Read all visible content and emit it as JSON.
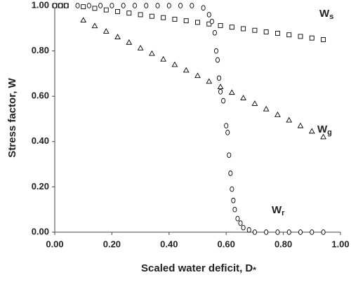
{
  "chart_data": {
    "type": "scatter",
    "x_label": {
      "text": "Scaled water deficit, D",
      "sub": "*"
    },
    "y_label": "Stress factor, W",
    "xlim": [
      0,
      1
    ],
    "ylim": [
      0,
      1
    ],
    "xticks": [
      {
        "value": 0,
        "label": "0.00"
      },
      {
        "value": 0.2,
        "label": "0.20"
      },
      {
        "value": 0.4,
        "label": "0.40"
      },
      {
        "value": 0.6,
        "label": "0.60"
      },
      {
        "value": 0.8,
        "label": "0.80"
      },
      {
        "value": 1,
        "label": "1.00"
      }
    ],
    "yticks": [
      {
        "value": 0,
        "label": "0.00"
      },
      {
        "value": 0.2,
        "label": "0.20"
      },
      {
        "value": 0.4,
        "label": "0.40"
      },
      {
        "value": 0.6,
        "label": "0.60"
      },
      {
        "value": 0.8,
        "label": "0.80"
      },
      {
        "value": 1,
        "label": "1.00"
      }
    ],
    "grid": false,
    "series": [
      {
        "marker": "square",
        "color": "#000000",
        "x": [
          0,
          0.02,
          0.04,
          0.1,
          0.14,
          0.18,
          0.22,
          0.26,
          0.3,
          0.34,
          0.38,
          0.42,
          0.46,
          0.5,
          0.54,
          0.58,
          0.62,
          0.66,
          0.7,
          0.74,
          0.78,
          0.82,
          0.86,
          0.9,
          0.94
        ],
        "values": [
          1,
          1,
          1,
          0.995,
          0.988,
          0.981,
          0.974,
          0.967,
          0.96,
          0.953,
          0.947,
          0.94,
          0.933,
          0.926,
          0.919,
          0.912,
          0.905,
          0.898,
          0.891,
          0.884,
          0.878,
          0.871,
          0.864,
          0.857,
          0.85
        ]
      },
      {
        "marker": "triangle",
        "color": "#000000",
        "x": [
          0.1,
          0.14,
          0.18,
          0.22,
          0.26,
          0.3,
          0.34,
          0.38,
          0.42,
          0.46,
          0.5,
          0.54,
          0.58,
          0.62,
          0.66,
          0.7,
          0.74,
          0.78,
          0.82,
          0.86,
          0.9,
          0.94
        ],
        "values": [
          0.935,
          0.91,
          0.886,
          0.861,
          0.837,
          0.812,
          0.788,
          0.763,
          0.739,
          0.714,
          0.69,
          0.665,
          0.641,
          0.616,
          0.592,
          0.567,
          0.543,
          0.518,
          0.494,
          0.469,
          0.445,
          0.42
        ]
      },
      {
        "marker": "circle",
        "color": "#000000",
        "x": [
          0,
          0.02,
          0.04,
          0.08,
          0.12,
          0.16,
          0.2,
          0.24,
          0.28,
          0.32,
          0.36,
          0.4,
          0.44,
          0.48,
          0.52,
          0.54,
          0.55,
          0.56,
          0.565,
          0.57,
          0.575,
          0.58,
          0.59,
          0.6,
          0.605,
          0.61,
          0.615,
          0.62,
          0.625,
          0.63,
          0.64,
          0.65,
          0.66,
          0.68,
          0.7,
          0.74,
          0.78,
          0.82,
          0.86,
          0.9,
          0.94
        ],
        "values": [
          1,
          1,
          1,
          1,
          1,
          1,
          1,
          1,
          1,
          1,
          1,
          1,
          1,
          1,
          0.99,
          0.96,
          0.93,
          0.88,
          0.8,
          0.76,
          0.68,
          0.62,
          0.58,
          0.47,
          0.44,
          0.34,
          0.26,
          0.19,
          0.14,
          0.1,
          0.06,
          0.04,
          0.02,
          0.01,
          0,
          0,
          0,
          0,
          0,
          0,
          0
        ]
      }
    ],
    "annotations": [
      {
        "text": "W",
        "sub": "s"
      },
      {
        "text": "W",
        "sub": "g"
      },
      {
        "text": "W",
        "sub": "r"
      }
    ]
  }
}
